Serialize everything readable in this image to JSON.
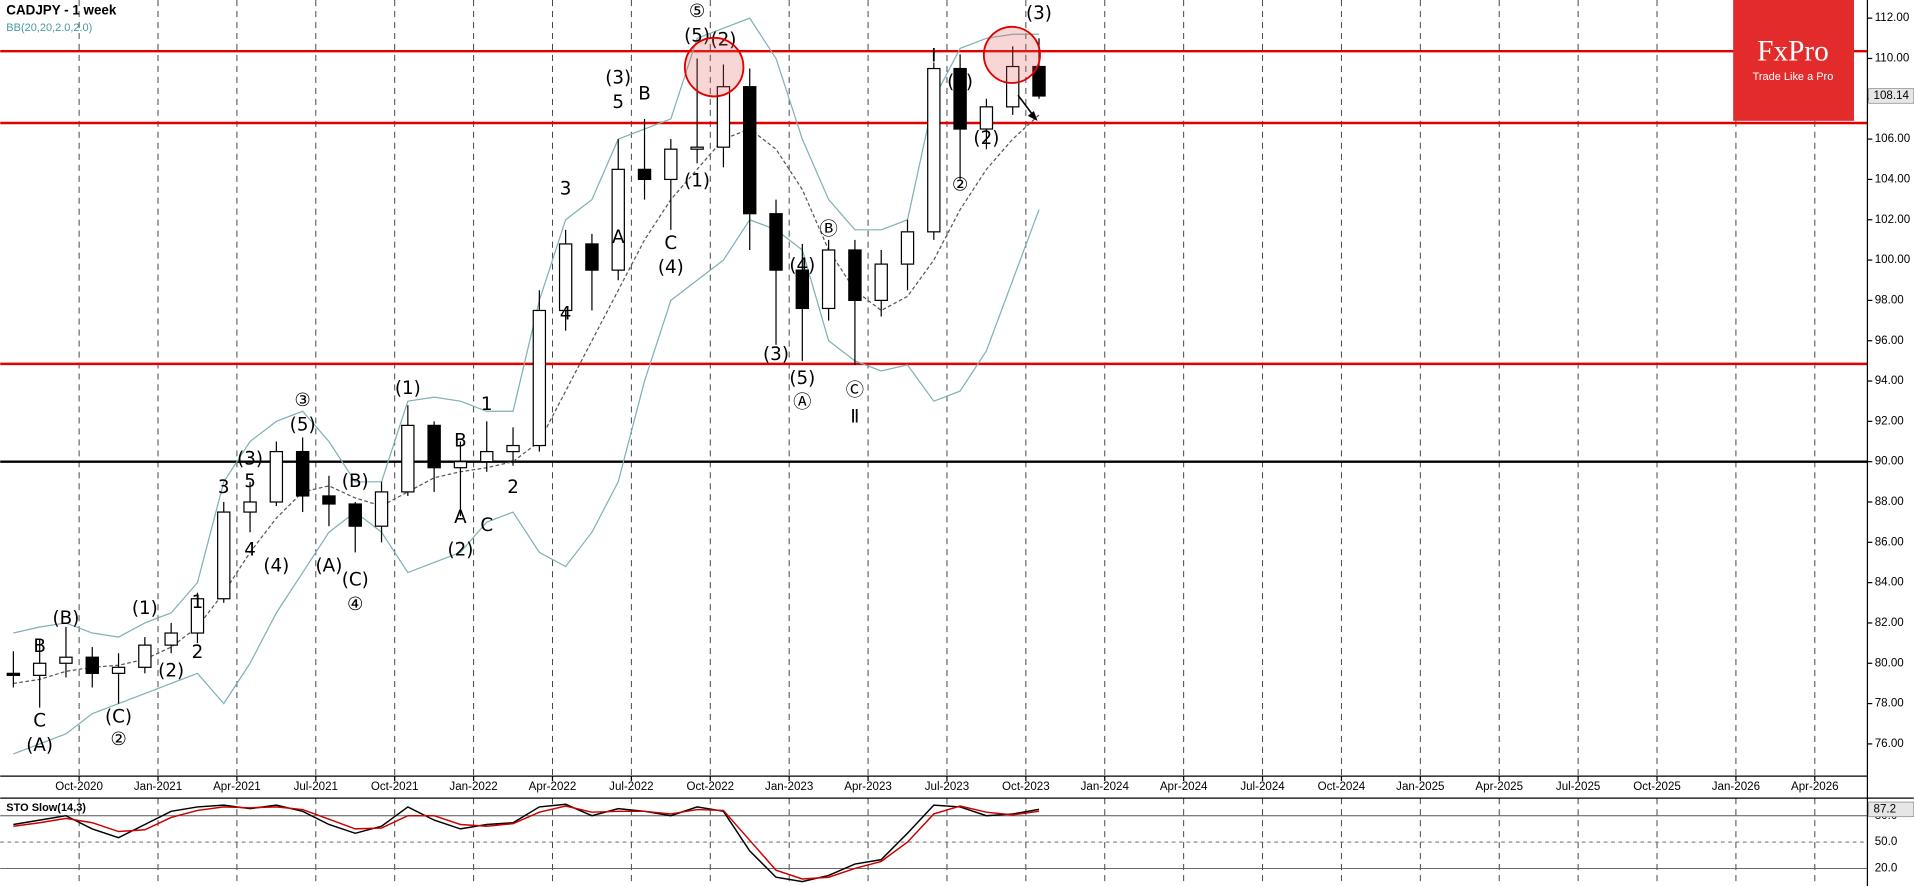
{
  "chart_data": [
    {
      "type": "candlestick",
      "title": "CADJPY - 1 week",
      "subtitle": "BB(20,20,2.0,2.0)",
      "x": [
        "2020-07",
        "2020-08",
        "2020-09",
        "2020-10",
        "2020-11",
        "2020-12",
        "2021-01",
        "2021-02",
        "2021-03",
        "2021-04",
        "2021-05",
        "2021-06",
        "2021-07",
        "2021-08",
        "2021-09",
        "2021-10",
        "2021-11",
        "2021-12",
        "2022-01",
        "2022-02",
        "2022-03",
        "2022-04",
        "2022-05",
        "2022-06",
        "2022-07",
        "2022-08",
        "2022-09",
        "2022-10",
        "2022-11",
        "2022-12",
        "2023-01",
        "2023-02",
        "2023-03",
        "2023-04",
        "2023-05",
        "2023-06",
        "2023-07",
        "2023-08",
        "2023-09",
        "2023-10"
      ],
      "open": [
        79.5,
        79.4,
        80.0,
        80.3,
        79.5,
        79.8,
        80.9,
        81.5,
        83.2,
        87.5,
        88.0,
        90.5,
        88.3,
        87.9,
        86.8,
        88.5,
        91.8,
        89.7,
        90.0,
        90.5,
        90.8,
        97.5,
        100.8,
        99.5,
        104.5,
        104.0,
        105.5,
        105.6,
        108.6,
        102.3,
        99.5,
        97.6,
        100.5,
        98.0,
        99.8,
        101.4,
        109.5,
        106.5,
        107.6,
        109.6
      ],
      "high": [
        80.6,
        81.2,
        81.8,
        80.8,
        80.5,
        81.3,
        82.0,
        83.5,
        88.0,
        89.0,
        91.0,
        91.2,
        89.3,
        88.0,
        89.0,
        92.8,
        92.0,
        91.0,
        92.0,
        91.7,
        98.5,
        101.5,
        101.3,
        106.0,
        107.0,
        106.0,
        110.0,
        109.7,
        109.5,
        103.0,
        100.8,
        101.0,
        101.0,
        100.5,
        102.0,
        109.8,
        110.2,
        108.0,
        110.6,
        111.0
      ],
      "low": [
        78.8,
        77.8,
        79.3,
        78.8,
        78.0,
        79.5,
        80.5,
        81.0,
        83.0,
        86.5,
        87.8,
        87.5,
        86.8,
        85.5,
        86.0,
        88.3,
        88.5,
        87.3,
        89.5,
        89.8,
        90.5,
        96.5,
        97.5,
        99.0,
        103.0,
        101.5,
        104.8,
        104.6,
        100.5,
        95.8,
        95.0,
        97.0,
        94.8,
        97.2,
        98.5,
        101.0,
        104.0,
        105.5,
        107.2,
        108.0
      ],
      "close": [
        79.4,
        80.0,
        80.3,
        79.5,
        79.8,
        80.9,
        81.5,
        83.2,
        87.5,
        88.0,
        90.5,
        88.3,
        87.9,
        86.8,
        88.5,
        91.8,
        89.7,
        90.0,
        90.5,
        90.8,
        97.5,
        100.8,
        99.5,
        104.5,
        104.0,
        105.5,
        105.6,
        108.6,
        102.3,
        99.5,
        97.6,
        100.5,
        98.0,
        99.8,
        101.4,
        109.5,
        106.5,
        107.6,
        109.6,
        108.14
      ],
      "up_color": "#ffffff",
      "down_color": "#000000",
      "overlays": [
        {
          "color": "#7fb0b6",
          "dash": false,
          "values": [
            81.5,
            81.8,
            82,
            81.5,
            81.3,
            82,
            82.5,
            84,
            89,
            91,
            92,
            92.5,
            91,
            89,
            89,
            93,
            93.2,
            93.0,
            92.5,
            92.5,
            98,
            102,
            103,
            106,
            106.5,
            107,
            111,
            111.5,
            112,
            110,
            106,
            103,
            101.5,
            101.5,
            102,
            108,
            110.5,
            111,
            111.2,
            111.2
          ]
        },
        {
          "color": "#555555",
          "dash": true,
          "values": [
            79,
            79.2,
            79.6,
            79.8,
            79.9,
            80.2,
            80.8,
            81.8,
            83.5,
            85.5,
            87.2,
            88.5,
            88.8,
            88.2,
            87.8,
            88.5,
            89.2,
            89.5,
            89.7,
            90.0,
            91,
            93.5,
            96,
            98.5,
            101,
            103,
            104.5,
            106,
            106.5,
            105.5,
            103.5,
            100.5,
            98.5,
            97.5,
            98.2,
            100,
            102.5,
            104.5,
            106,
            107.2
          ]
        },
        {
          "color": "#7fb0b6",
          "dash": false,
          "values": [
            75.5,
            76,
            76.5,
            77.5,
            78,
            78.5,
            79,
            79.5,
            78,
            80,
            82.5,
            84.5,
            86.5,
            87.5,
            86.5,
            84.5,
            85,
            85.5,
            87,
            87.5,
            85.5,
            84.8,
            86.5,
            89,
            94,
            98,
            99,
            100,
            102,
            101.5,
            100.5,
            96,
            95,
            94.5,
            94.8,
            93,
            93.5,
            95.5,
            99,
            102.5
          ]
        }
      ],
      "levels": [
        {
          "value": 110.36,
          "color": "#e00000"
        },
        {
          "value": 106.8,
          "color": "#e00000"
        },
        {
          "value": 94.85,
          "color": "#e00000"
        },
        {
          "value": 90.0,
          "color": "#000000"
        }
      ],
      "xlim": [
        "2020-07",
        "2026-06"
      ],
      "ylim": [
        74.4,
        112.9
      ],
      "xticks": [
        {
          "value": "2020-10",
          "label": "Oct-2020"
        },
        {
          "value": "2021-01",
          "label": "Jan-2021"
        },
        {
          "value": "2021-04",
          "label": "Apr-2021"
        },
        {
          "value": "2021-07",
          "label": "Jul-2021"
        },
        {
          "value": "2021-10",
          "label": "Oct-2021"
        },
        {
          "value": "2022-01",
          "label": "Jan-2022"
        },
        {
          "value": "2022-04",
          "label": "Apr-2022"
        },
        {
          "value": "2022-07",
          "label": "Jul-2022"
        },
        {
          "value": "2022-10",
          "label": "Oct-2022"
        },
        {
          "value": "2023-01",
          "label": "Jan-2023"
        },
        {
          "value": "2023-04",
          "label": "Apr-2023"
        },
        {
          "value": "2023-07",
          "label": "Jul-2023"
        },
        {
          "value": "2023-10",
          "label": "Oct-2023"
        },
        {
          "value": "2024-01",
          "label": "Jan-2024"
        },
        {
          "value": "2024-04",
          "label": "Apr-2024"
        },
        {
          "value": "2024-07",
          "label": "Jul-2024"
        },
        {
          "value": "2024-10",
          "label": "Oct-2024"
        },
        {
          "value": "2025-01",
          "label": "Jan-2025"
        },
        {
          "value": "2025-04",
          "label": "Apr-2025"
        },
        {
          "value": "2025-07",
          "label": "Jul-2025"
        },
        {
          "value": "2025-10",
          "label": "Oct-2025"
        },
        {
          "value": "2026-01",
          "label": "Jan-2026"
        },
        {
          "value": "2026-04",
          "label": "Apr-2026"
        }
      ],
      "yticks": [
        {
          "value": 76,
          "label": "76.00"
        },
        {
          "value": 78,
          "label": "78.00"
        },
        {
          "value": 80,
          "label": "80.00"
        },
        {
          "value": 82,
          "label": "82.00"
        },
        {
          "value": 84,
          "label": "84.00"
        },
        {
          "value": 86,
          "label": "86.00"
        },
        {
          "value": 88,
          "label": "88.00"
        },
        {
          "value": 90,
          "label": "90.00"
        },
        {
          "value": 92,
          "label": "92.00"
        },
        {
          "value": 94,
          "label": "94.00"
        },
        {
          "value": 96,
          "label": "96.00"
        },
        {
          "value": 98,
          "label": "98.00"
        },
        {
          "value": 100,
          "label": "100.00"
        },
        {
          "value": 102,
          "label": "102.00"
        },
        {
          "value": 104,
          "label": "104.00"
        },
        {
          "value": 106,
          "label": "106.00"
        },
        {
          "value": 108,
          "label": "108.00"
        },
        {
          "value": 110,
          "label": "110.00"
        },
        {
          "value": 112,
          "label": "112.00"
        }
      ],
      "annotations": [
        {
          "text": "B",
          "x": "2020-08",
          "y": 80.8
        },
        {
          "text": "C",
          "x": "2020-08",
          "y": 77.1
        },
        {
          "text": "(A)",
          "x": "2020-08",
          "y": 75.9
        },
        {
          "text": "(B)",
          "x": "2020-09",
          "y": 82.2
        },
        {
          "text": "(C)",
          "x": "2020-11",
          "y": 77.3
        },
        {
          "text": "②",
          "x": "2020-11",
          "y": 76.2
        },
        {
          "text": "(1)",
          "x": "2020-12",
          "y": 82.7
        },
        {
          "text": "(2)",
          "x": "2021-01",
          "y": 79.6
        },
        {
          "text": "1",
          "x": "2021-02",
          "y": 83.0
        },
        {
          "text": "2",
          "x": "2021-02",
          "y": 80.5
        },
        {
          "text": "4",
          "x": "2021-04",
          "y": 85.6
        },
        {
          "text": "(4)",
          "x": "2021-05",
          "y": 84.8
        },
        {
          "text": "3",
          "x": "2021-03",
          "y": 88.7
        },
        {
          "text": "5",
          "x": "2021-04",
          "y": 89.0
        },
        {
          "text": "(3)",
          "x": "2021-04",
          "y": 90.1
        },
        {
          "text": "(5)",
          "x": "2021-06",
          "y": 91.8
        },
        {
          "text": "③",
          "x": "2021-06",
          "y": 93.0
        },
        {
          "text": "(A)",
          "x": "2021-07",
          "y": 84.8
        },
        {
          "text": "(B)",
          "x": "2021-08",
          "y": 89.0
        },
        {
          "text": "(C)",
          "x": "2021-08",
          "y": 84.1
        },
        {
          "text": "④",
          "x": "2021-08",
          "y": 82.9
        },
        {
          "text": "(1)",
          "x": "2021-10",
          "y": 93.6
        },
        {
          "text": "B",
          "x": "2021-12",
          "y": 91.0
        },
        {
          "text": "1",
          "x": "2022-01",
          "y": 92.8
        },
        {
          "text": "A",
          "x": "2021-12",
          "y": 87.2
        },
        {
          "text": "C",
          "x": "2022-01",
          "y": 86.8
        },
        {
          "text": "(2)",
          "x": "2021-12",
          "y": 85.6
        },
        {
          "text": "2",
          "x": "2022-02",
          "y": 88.7
        },
        {
          "text": "4",
          "x": "2022-04",
          "y": 97.3
        },
        {
          "text": "3",
          "x": "2022-04",
          "y": 103.5
        },
        {
          "text": "A",
          "x": "2022-06",
          "y": 101.1
        },
        {
          "text": "(3)",
          "x": "2022-06",
          "y": 109.0
        },
        {
          "text": "5",
          "x": "2022-06",
          "y": 107.8
        },
        {
          "text": "B",
          "x": "2022-07",
          "y": 108.2
        },
        {
          "text": "C",
          "x": "2022-08",
          "y": 100.8
        },
        {
          "text": "(4)",
          "x": "2022-08",
          "y": 99.6
        },
        {
          "text": "(1)",
          "x": "2022-09",
          "y": 103.9
        },
        {
          "text": "(5)",
          "x": "2022-09",
          "y": 111.1
        },
        {
          "text": "⑤",
          "x": "2022-09",
          "y": 112.3
        },
        {
          "text": "(2)",
          "x": "2022-10",
          "y": 110.9
        },
        {
          "text": "(4)",
          "x": "2023-01",
          "y": 99.7
        },
        {
          "text": "(3)",
          "x": "2022-12",
          "y": 95.3
        },
        {
          "text": "(5)",
          "x": "2023-01",
          "y": 94.1
        },
        {
          "text": "Ⓐ",
          "x": "2023-01",
          "y": 92.9
        },
        {
          "text": "Ⓑ",
          "x": "2023-02",
          "y": 101.5
        },
        {
          "text": "Ⓒ",
          "x": "2023-03",
          "y": 93.5
        },
        {
          "text": "Ⅱ",
          "x": "2023-03",
          "y": 92.2
        },
        {
          "text": "Ⅰ",
          "x": "2023-06",
          "y": 110.1
        },
        {
          "text": "(1)",
          "x": "2023-07",
          "y": 108.8
        },
        {
          "text": "(2)",
          "x": "2023-08",
          "y": 106.0
        },
        {
          "text": "②",
          "x": "2023-07",
          "y": 103.7
        },
        {
          "text": "(3)",
          "x": "2023-10",
          "y": 112.2
        }
      ]
    },
    {
      "type": "line",
      "title": "STO Slow(14,3)",
      "series": [
        {
          "color": "#000000",
          "values": [
            70,
            75,
            80,
            65,
            55,
            70,
            85,
            90,
            92,
            88,
            92,
            85,
            70,
            60,
            68,
            90,
            75,
            65,
            70,
            72,
            90,
            93,
            80,
            88,
            85,
            80,
            90,
            85,
            40,
            10,
            5,
            12,
            25,
            30,
            60,
            92,
            90,
            80,
            82,
            87.2
          ]
        },
        {
          "color": "#cc0000",
          "values": [
            68,
            72,
            77,
            72,
            62,
            64,
            78,
            86,
            90,
            89,
            90,
            87,
            76,
            65,
            66,
            80,
            80,
            70,
            68,
            71,
            84,
            91,
            84,
            85,
            85,
            82,
            87,
            86,
            52,
            18,
            8,
            10,
            20,
            28,
            50,
            82,
            91,
            84,
            81,
            85
          ]
        }
      ],
      "ylim": [
        0,
        100
      ],
      "yticks": [
        {
          "value": 20,
          "label": "20.0"
        },
        {
          "value": 50,
          "label": "50.0"
        },
        {
          "value": 80,
          "label": "80.0"
        }
      ]
    },
    {
      "logo": "FxPro",
      "tagline": "Trade Like a Pro"
    }
  ]
}
